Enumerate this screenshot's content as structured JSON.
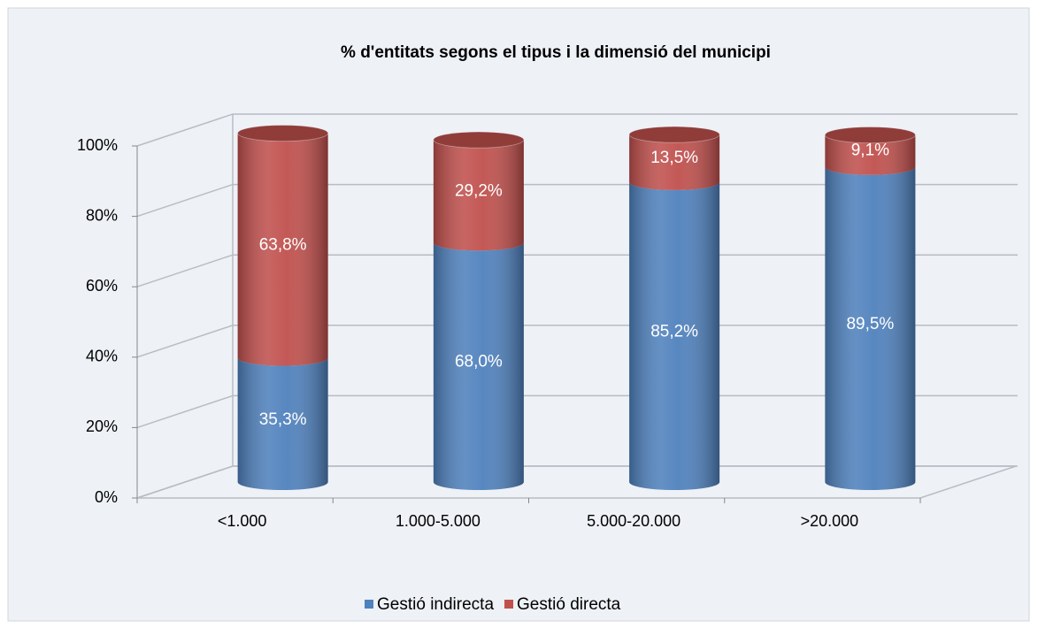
{
  "chart_data": {
    "type": "bar3d-stacked",
    "title": "% d'entitats segons el tipus i la dimensió del municipi",
    "categories": [
      "<1.000",
      "1.000-5.000",
      "5.000-20.000",
      ">20.000"
    ],
    "series": [
      {
        "name": "Gestió indirecta",
        "color": "#4f81bd",
        "values": [
          35.3,
          68.0,
          85.2,
          89.5
        ],
        "value_labels": [
          "35,3%",
          "68,0%",
          "85,2%",
          "89,5%"
        ]
      },
      {
        "name": "Gestió directa",
        "color": "#c0504d",
        "values": [
          63.8,
          29.2,
          13.5,
          9.1
        ],
        "value_labels": [
          "63,8%",
          "29,2%",
          "13,5%",
          "9,1%"
        ]
      }
    ],
    "ylim": [
      0,
      100
    ],
    "yticks": [
      {
        "value": 0,
        "label": "0%"
      },
      {
        "value": 20,
        "label": "20%"
      },
      {
        "value": 40,
        "label": "40%"
      },
      {
        "value": 60,
        "label": "60%"
      },
      {
        "value": 80,
        "label": "80%"
      },
      {
        "value": 100,
        "label": "100%"
      }
    ],
    "grid": true,
    "legend": "bottom"
  }
}
